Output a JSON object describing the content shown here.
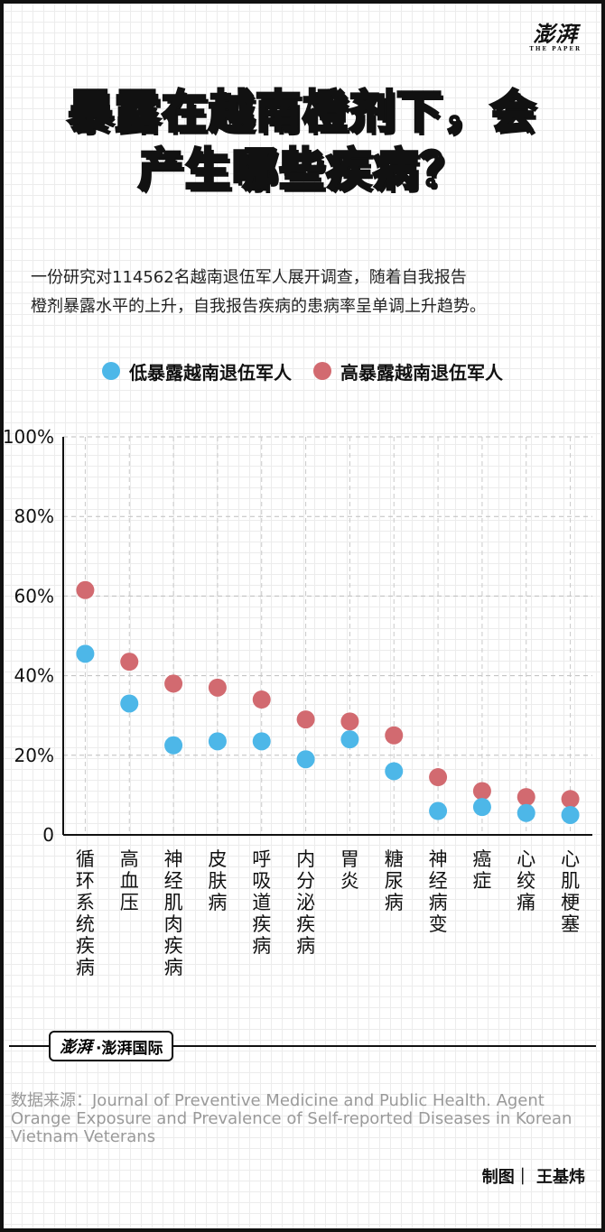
{
  "brand": {
    "logo_top": "澎湃",
    "logo_top_sub": "THE PAPER",
    "logo_footer_mark": "澎湃",
    "logo_footer_name": "·澎湃国际"
  },
  "title": {
    "line1": "暴露在越南橙剂下，会",
    "line2": "产生哪些疾病？"
  },
  "intro": {
    "line1": "一份研究对114562名越南退伍军人展开调查，随着自我报告",
    "line2": "橙剂暴露水平的上升，自我报告疾病的患病率呈单调上升趋势。"
  },
  "colors": {
    "low": "#4db7e8",
    "high": "#d26a70",
    "axis": "#111111"
  },
  "chart_data": {
    "type": "scatter",
    "categories": [
      "循环系统疾病",
      "高血压",
      "神经肌肉疾病",
      "皮肤病",
      "呼吸道疾病",
      "内分泌疾病",
      "胃炎",
      "糖尿病",
      "神经病变",
      "癌症",
      "心绞痛",
      "心肌梗塞"
    ],
    "series": [
      {
        "name": "低暴露越南退伍军人",
        "values": [
          45.5,
          33,
          22.5,
          23.5,
          23.5,
          19,
          24,
          16,
          6,
          7,
          5.5,
          5
        ]
      },
      {
        "name": "高暴露越南退伍军人",
        "values": [
          61.5,
          43.5,
          38,
          37,
          34,
          29,
          28.5,
          25,
          14.5,
          11,
          9.5,
          9
        ]
      }
    ],
    "y_ticks": [
      "0",
      "20%",
      "40%",
      "60%",
      "80%",
      "100%"
    ],
    "ylim": [
      0,
      100
    ],
    "grid": true,
    "legend": "top-center"
  },
  "source": {
    "text": "数据来源：Journal of Preventive Medicine and Public Health. Agent Orange Exposure and Prevalence of Self-reported Diseases in Korean Vietnam Veterans"
  },
  "credit": {
    "text": "制图｜ 王基炜"
  }
}
